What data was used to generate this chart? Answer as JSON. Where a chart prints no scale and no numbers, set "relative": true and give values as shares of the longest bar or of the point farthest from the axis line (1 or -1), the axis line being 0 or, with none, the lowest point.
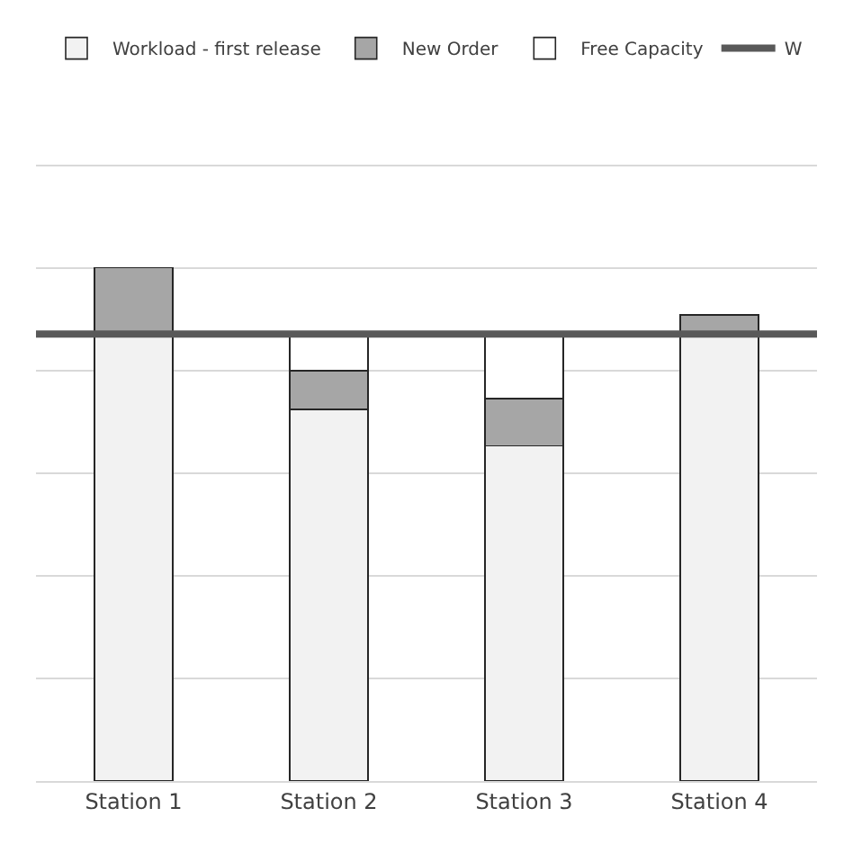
{
  "chart_data": {
    "type": "bar",
    "stacked": true,
    "relative": true,
    "grid": "y",
    "legend": "top",
    "categories": [
      "Station 1",
      "Station 2",
      "Station 3",
      "Station 4"
    ],
    "series": [
      {
        "name": "Workload - first release",
        "color": "#f2f2f2",
        "values": [
          0.871,
          0.724,
          0.653,
          0.871
        ]
      },
      {
        "name": "New Order",
        "color": "#a6a6a6",
        "values": [
          0.129,
          0.075,
          0.092,
          0.037
        ]
      },
      {
        "name": "Free Capacity",
        "color": "#ffffff",
        "values": [
          null,
          0.071,
          0.126,
          null
        ]
      }
    ],
    "ref_lines": [
      {
        "axis": "y",
        "value": 0.871,
        "label": "W",
        "color": "#595959",
        "line_style": "solid"
      }
    ]
  }
}
